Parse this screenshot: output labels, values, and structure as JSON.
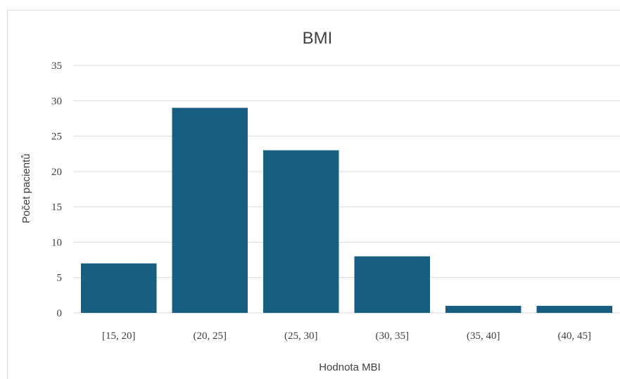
{
  "chart_data": {
    "type": "bar",
    "title": "BMI",
    "xlabel": "Hodnota MBI",
    "ylabel": "Počet pacientů",
    "categories": [
      "[15, 20]",
      "(20, 25]",
      "(25, 30]",
      "(30, 35]",
      "(35, 40]",
      "(40, 45]"
    ],
    "values": [
      7,
      29,
      23,
      8,
      1,
      1
    ],
    "ylim": [
      0,
      35
    ],
    "yticks": [
      0,
      5,
      10,
      15,
      20,
      25,
      30,
      35
    ],
    "grid": true,
    "bar_color": "#175e80"
  }
}
